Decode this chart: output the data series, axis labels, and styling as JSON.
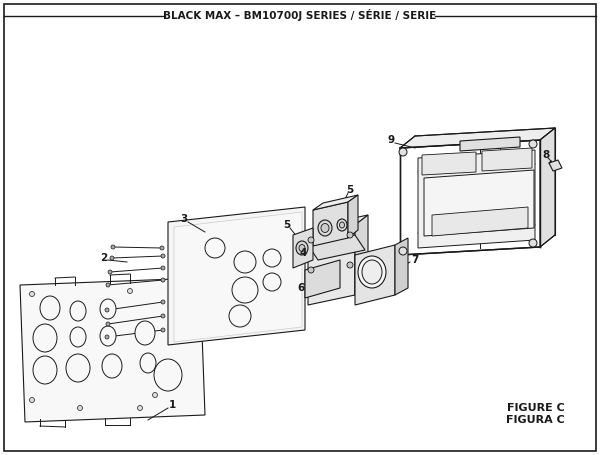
{
  "title": "BLACK MAX – BM10700J SERIES / SÉRIE / SERIE",
  "figure_label": "FIGURE C",
  "figura_label": "FIGURA C",
  "bg_color": "#ffffff",
  "lc": "#1a1a1a",
  "fc_light": "#f2f2f2",
  "fc_mid": "#e8e8e8",
  "fc_dark": "#d8d8d8"
}
